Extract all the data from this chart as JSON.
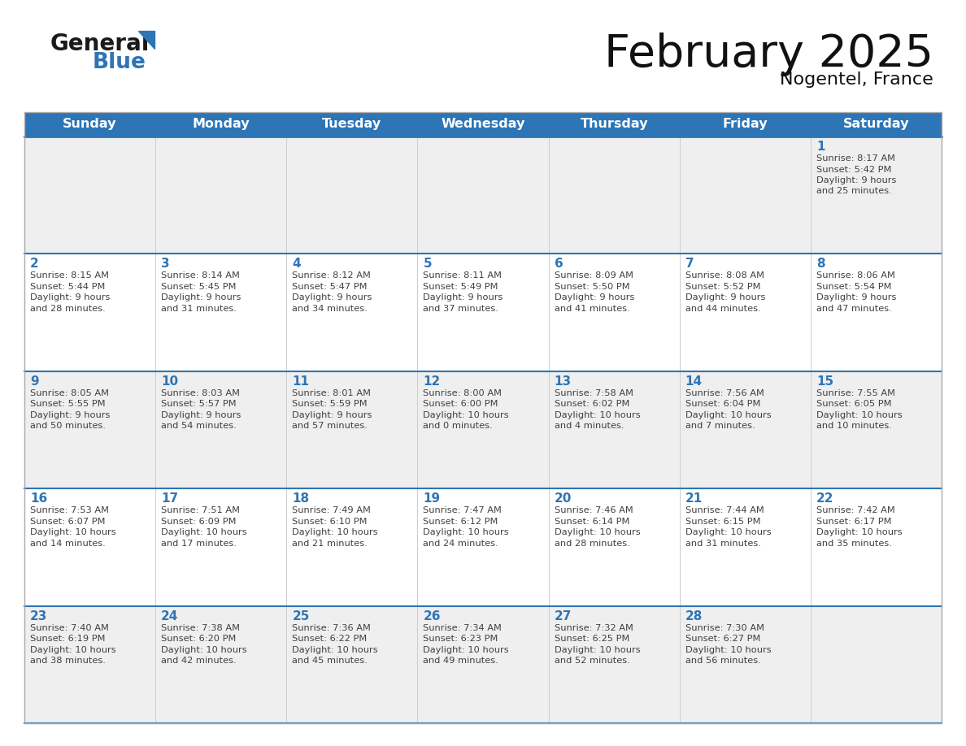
{
  "title": "February 2025",
  "subtitle": "Nogentel, France",
  "header_color": "#2E75B6",
  "header_text_color": "#FFFFFF",
  "days_of_week": [
    "Sunday",
    "Monday",
    "Tuesday",
    "Wednesday",
    "Thursday",
    "Friday",
    "Saturday"
  ],
  "separator_color": "#2E75B6",
  "day_number_color": "#2E75B6",
  "info_text_color": "#404040",
  "logo_general_color": "#1a1a1a",
  "logo_blue_color": "#2E75B6",
  "logo_triangle_color": "#2E75B6",
  "calendar_data": [
    [
      {
        "day": null,
        "sunrise": null,
        "sunset": null,
        "daylight": null
      },
      {
        "day": null,
        "sunrise": null,
        "sunset": null,
        "daylight": null
      },
      {
        "day": null,
        "sunrise": null,
        "sunset": null,
        "daylight": null
      },
      {
        "day": null,
        "sunrise": null,
        "sunset": null,
        "daylight": null
      },
      {
        "day": null,
        "sunrise": null,
        "sunset": null,
        "daylight": null
      },
      {
        "day": null,
        "sunrise": null,
        "sunset": null,
        "daylight": null
      },
      {
        "day": 1,
        "sunrise": "8:17 AM",
        "sunset": "5:42 PM",
        "daylight": "9 hours\nand 25 minutes."
      }
    ],
    [
      {
        "day": 2,
        "sunrise": "8:15 AM",
        "sunset": "5:44 PM",
        "daylight": "9 hours\nand 28 minutes."
      },
      {
        "day": 3,
        "sunrise": "8:14 AM",
        "sunset": "5:45 PM",
        "daylight": "9 hours\nand 31 minutes."
      },
      {
        "day": 4,
        "sunrise": "8:12 AM",
        "sunset": "5:47 PM",
        "daylight": "9 hours\nand 34 minutes."
      },
      {
        "day": 5,
        "sunrise": "8:11 AM",
        "sunset": "5:49 PM",
        "daylight": "9 hours\nand 37 minutes."
      },
      {
        "day": 6,
        "sunrise": "8:09 AM",
        "sunset": "5:50 PM",
        "daylight": "9 hours\nand 41 minutes."
      },
      {
        "day": 7,
        "sunrise": "8:08 AM",
        "sunset": "5:52 PM",
        "daylight": "9 hours\nand 44 minutes."
      },
      {
        "day": 8,
        "sunrise": "8:06 AM",
        "sunset": "5:54 PM",
        "daylight": "9 hours\nand 47 minutes."
      }
    ],
    [
      {
        "day": 9,
        "sunrise": "8:05 AM",
        "sunset": "5:55 PM",
        "daylight": "9 hours\nand 50 minutes."
      },
      {
        "day": 10,
        "sunrise": "8:03 AM",
        "sunset": "5:57 PM",
        "daylight": "9 hours\nand 54 minutes."
      },
      {
        "day": 11,
        "sunrise": "8:01 AM",
        "sunset": "5:59 PM",
        "daylight": "9 hours\nand 57 minutes."
      },
      {
        "day": 12,
        "sunrise": "8:00 AM",
        "sunset": "6:00 PM",
        "daylight": "10 hours\nand 0 minutes."
      },
      {
        "day": 13,
        "sunrise": "7:58 AM",
        "sunset": "6:02 PM",
        "daylight": "10 hours\nand 4 minutes."
      },
      {
        "day": 14,
        "sunrise": "7:56 AM",
        "sunset": "6:04 PM",
        "daylight": "10 hours\nand 7 minutes."
      },
      {
        "day": 15,
        "sunrise": "7:55 AM",
        "sunset": "6:05 PM",
        "daylight": "10 hours\nand 10 minutes."
      }
    ],
    [
      {
        "day": 16,
        "sunrise": "7:53 AM",
        "sunset": "6:07 PM",
        "daylight": "10 hours\nand 14 minutes."
      },
      {
        "day": 17,
        "sunrise": "7:51 AM",
        "sunset": "6:09 PM",
        "daylight": "10 hours\nand 17 minutes."
      },
      {
        "day": 18,
        "sunrise": "7:49 AM",
        "sunset": "6:10 PM",
        "daylight": "10 hours\nand 21 minutes."
      },
      {
        "day": 19,
        "sunrise": "7:47 AM",
        "sunset": "6:12 PM",
        "daylight": "10 hours\nand 24 minutes."
      },
      {
        "day": 20,
        "sunrise": "7:46 AM",
        "sunset": "6:14 PM",
        "daylight": "10 hours\nand 28 minutes."
      },
      {
        "day": 21,
        "sunrise": "7:44 AM",
        "sunset": "6:15 PM",
        "daylight": "10 hours\nand 31 minutes."
      },
      {
        "day": 22,
        "sunrise": "7:42 AM",
        "sunset": "6:17 PM",
        "daylight": "10 hours\nand 35 minutes."
      }
    ],
    [
      {
        "day": 23,
        "sunrise": "7:40 AM",
        "sunset": "6:19 PM",
        "daylight": "10 hours\nand 38 minutes."
      },
      {
        "day": 24,
        "sunrise": "7:38 AM",
        "sunset": "6:20 PM",
        "daylight": "10 hours\nand 42 minutes."
      },
      {
        "day": 25,
        "sunrise": "7:36 AM",
        "sunset": "6:22 PM",
        "daylight": "10 hours\nand 45 minutes."
      },
      {
        "day": 26,
        "sunrise": "7:34 AM",
        "sunset": "6:23 PM",
        "daylight": "10 hours\nand 49 minutes."
      },
      {
        "day": 27,
        "sunrise": "7:32 AM",
        "sunset": "6:25 PM",
        "daylight": "10 hours\nand 52 minutes."
      },
      {
        "day": 28,
        "sunrise": "7:30 AM",
        "sunset": "6:27 PM",
        "daylight": "10 hours\nand 56 minutes."
      },
      {
        "day": null,
        "sunrise": null,
        "sunset": null,
        "daylight": null
      }
    ]
  ]
}
